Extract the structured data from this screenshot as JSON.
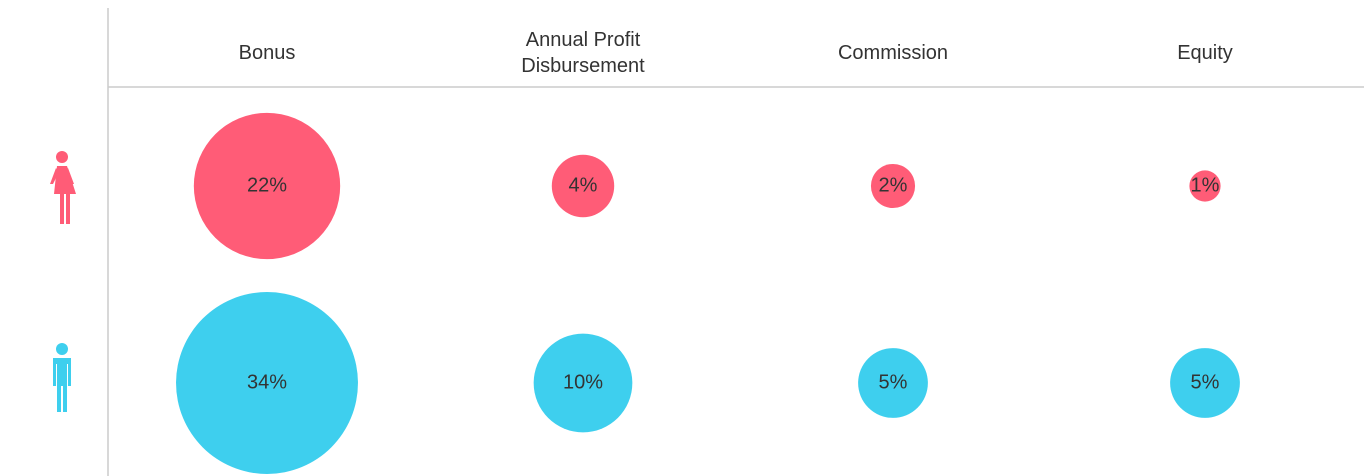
{
  "chart_data": {
    "type": "bubble",
    "categories": [
      "Bonus",
      "Annual Profit Disbursement",
      "Commission",
      "Equity"
    ],
    "series": [
      {
        "color": "#ff5c77",
        "values": [
          22,
          4,
          2,
          1
        ],
        "value_labels": [
          "22%",
          "4%",
          "2%",
          "1%"
        ]
      },
      {
        "color": "#3ecfee",
        "values": [
          34,
          10,
          5,
          5
        ],
        "value_labels": [
          "34%",
          "10%",
          "5%",
          "5%"
        ]
      }
    ]
  }
}
